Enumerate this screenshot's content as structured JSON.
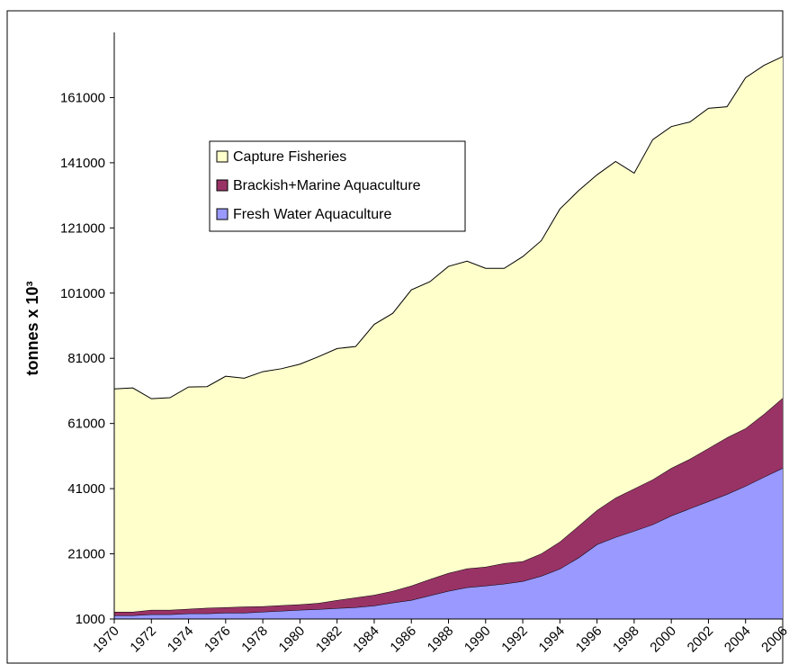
{
  "chart_data": {
    "type": "stacked_area",
    "y_label": "tonnes x 10³",
    "x": [
      1970,
      1971,
      1972,
      1973,
      1974,
      1975,
      1976,
      1977,
      1978,
      1979,
      1980,
      1981,
      1982,
      1983,
      1984,
      1985,
      1986,
      1987,
      1988,
      1989,
      1990,
      1991,
      1992,
      1993,
      1994,
      1995,
      1996,
      1997,
      1998,
      1999,
      2000,
      2001,
      2002,
      2003,
      2004,
      2005,
      2006
    ],
    "series": [
      {
        "name": "Fresh Water Aquaculture",
        "color": "#9999ff",
        "values": [
          2100,
          2100,
          2400,
          2400,
          2700,
          2700,
          2900,
          2900,
          3200,
          3500,
          3800,
          4000,
          4300,
          4600,
          5100,
          6000,
          6800,
          8200,
          9600,
          10700,
          11200,
          11800,
          12600,
          14200,
          16400,
          19800,
          23900,
          26100,
          28000,
          30000,
          32700,
          34900,
          37100,
          39300,
          41800,
          44600,
          47300
        ]
      },
      {
        "name": "Brackish+Marine Aquaculture",
        "color": "#993366",
        "values": [
          1100,
          1100,
          1400,
          1400,
          1400,
          1700,
          1700,
          1900,
          1700,
          1700,
          1700,
          1900,
          2500,
          3000,
          3300,
          3600,
          4400,
          5000,
          5500,
          5800,
          5800,
          6300,
          6100,
          6900,
          8300,
          9700,
          10500,
          12100,
          13000,
          13800,
          14600,
          15200,
          16300,
          17400,
          17700,
          19300,
          21500
        ]
      },
      {
        "name": "Capture Fisheries",
        "color": "#ffffcc",
        "values": [
          68400,
          68700,
          64800,
          65100,
          68100,
          67900,
          70900,
          70100,
          72000,
          72600,
          73700,
          75600,
          77200,
          77000,
          83000,
          85200,
          90800,
          91300,
          94100,
          94300,
          91600,
          90500,
          93500,
          96000,
          102100,
          102900,
          102900,
          103200,
          96800,
          104300,
          104800,
          103400,
          104300,
          101500,
          107600,
          107000,
          104800
        ]
      }
    ],
    "xlim": [
      1970,
      2006
    ],
    "xticks": [
      1970,
      1972,
      1974,
      1976,
      1978,
      1980,
      1982,
      1984,
      1986,
      1988,
      1990,
      1992,
      1994,
      1996,
      1998,
      2000,
      2002,
      2004,
      2006
    ],
    "ylim": [
      1000,
      181000
    ],
    "yticks": [
      1000,
      21000,
      41000,
      61000,
      81000,
      101000,
      121000,
      141000,
      161000
    ],
    "legend": "upper left"
  }
}
